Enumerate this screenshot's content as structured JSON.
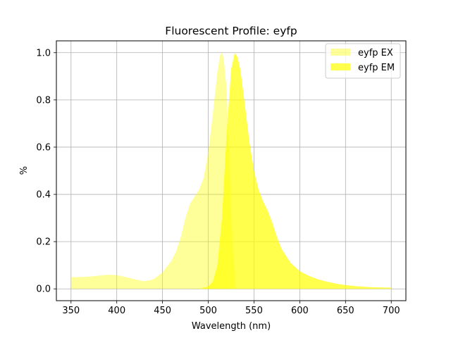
{
  "chart_data": {
    "type": "area",
    "title": "Fluorescent Profile: eyfp",
    "xlabel": "Wavelength (nm)",
    "ylabel": "%",
    "xlim": [
      334,
      716
    ],
    "ylim": [
      -0.05,
      1.05
    ],
    "xticks": [
      350,
      400,
      450,
      500,
      550,
      600,
      650,
      700
    ],
    "yticks": [
      0.0,
      0.2,
      0.4,
      0.6,
      0.8,
      1.0
    ],
    "xtick_labels": [
      "350",
      "400",
      "450",
      "500",
      "550",
      "600",
      "650",
      "700"
    ],
    "ytick_labels": [
      "0.0",
      "0.2",
      "0.4",
      "0.6",
      "0.8",
      "1.0"
    ],
    "grid": true,
    "legend_position": "top-right",
    "series": [
      {
        "name": "eyfp EX",
        "color": "#ffff00",
        "alpha": 0.4,
        "x": [
          350,
          360,
          370,
          380,
          390,
          400,
          410,
          420,
          430,
          440,
          450,
          460,
          465,
          470,
          475,
          480,
          485,
          490,
          495,
          500,
          505,
          510,
          513,
          515,
          517,
          520,
          523,
          526,
          530
        ],
        "y": [
          0.05,
          0.05,
          0.052,
          0.056,
          0.06,
          0.058,
          0.05,
          0.04,
          0.032,
          0.04,
          0.07,
          0.12,
          0.16,
          0.22,
          0.3,
          0.36,
          0.39,
          0.42,
          0.47,
          0.58,
          0.74,
          0.92,
          0.99,
          1.0,
          0.97,
          0.85,
          0.55,
          0.22,
          0.0
        ]
      },
      {
        "name": "eyfp EM",
        "color": "#ffff00",
        "alpha": 0.7,
        "x": [
          490,
          495,
          500,
          505,
          510,
          515,
          520,
          525,
          529,
          532,
          535,
          540,
          545,
          550,
          555,
          560,
          565,
          570,
          575,
          580,
          590,
          600,
          610,
          620,
          630,
          640,
          650,
          660,
          670,
          680,
          690,
          700
        ],
        "y": [
          0.0,
          0.005,
          0.01,
          0.03,
          0.1,
          0.3,
          0.65,
          0.93,
          1.0,
          0.98,
          0.93,
          0.78,
          0.62,
          0.5,
          0.42,
          0.37,
          0.33,
          0.28,
          0.22,
          0.17,
          0.11,
          0.075,
          0.055,
          0.04,
          0.03,
          0.022,
          0.016,
          0.012,
          0.009,
          0.007,
          0.006,
          0.005
        ]
      }
    ]
  }
}
